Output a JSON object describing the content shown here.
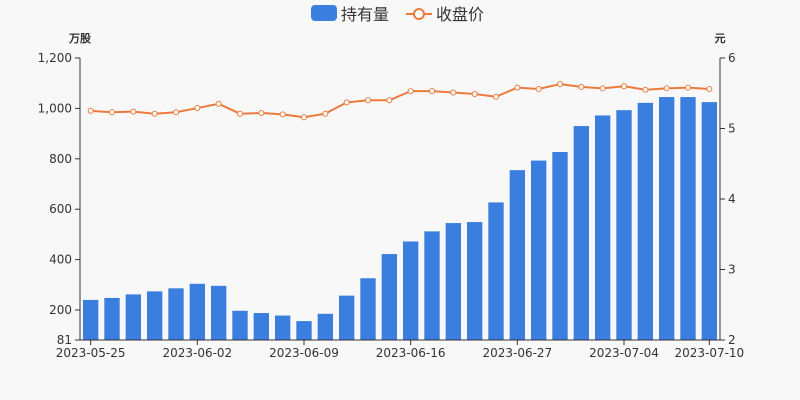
{
  "chart_data": {
    "type": "bar",
    "legend": {
      "position": "top-center",
      "items": [
        {
          "name": "持有量",
          "kind": "bar",
          "color": "#3a7fe0"
        },
        {
          "name": "收盘价",
          "kind": "line",
          "color": "#ec7a3c"
        }
      ]
    },
    "left_axis": {
      "unit": "万股",
      "range": [
        81,
        1200
      ],
      "ticks": [
        81,
        200,
        400,
        600,
        800,
        1000,
        1200
      ],
      "tick_labels": [
        "81",
        "200",
        "400",
        "600",
        "800",
        "1,000",
        "1,200"
      ]
    },
    "right_axis": {
      "unit": "元",
      "range": [
        2,
        6
      ],
      "ticks": [
        2,
        3,
        4,
        5,
        6
      ],
      "tick_labels": [
        "2",
        "3",
        "4",
        "5",
        "6"
      ]
    },
    "x_tick_labels": [
      {
        "index": 0,
        "label": "2023-05-25"
      },
      {
        "index": 5,
        "label": "2023-06-02"
      },
      {
        "index": 10,
        "label": "2023-06-09"
      },
      {
        "index": 15,
        "label": "2023-06-16"
      },
      {
        "index": 20,
        "label": "2023-06-27"
      },
      {
        "index": 25,
        "label": "2023-07-04"
      },
      {
        "index": 29,
        "label": "2023-07-10"
      }
    ],
    "series": [
      {
        "name": "持有量",
        "type": "bar",
        "axis": "left",
        "color": "#3a7fe0",
        "values": [
          240,
          248,
          262,
          274,
          286,
          304,
          296,
          197,
          188,
          178,
          156,
          185,
          257,
          326,
          422,
          472,
          512,
          545,
          549,
          627,
          755,
          793,
          827,
          930,
          972,
          993,
          1022,
          1045,
          1045,
          1025
        ]
      },
      {
        "name": "收盘价",
        "type": "line",
        "axis": "right",
        "color": "#ec7a3c",
        "values": [
          5.25,
          5.23,
          5.24,
          5.21,
          5.23,
          5.29,
          5.35,
          5.21,
          5.22,
          5.2,
          5.16,
          5.21,
          5.37,
          5.4,
          5.4,
          5.53,
          5.53,
          5.51,
          5.49,
          5.45,
          5.58,
          5.56,
          5.63,
          5.59,
          5.57,
          5.6,
          5.55,
          5.57,
          5.58,
          5.56
        ]
      }
    ],
    "grid": false
  }
}
